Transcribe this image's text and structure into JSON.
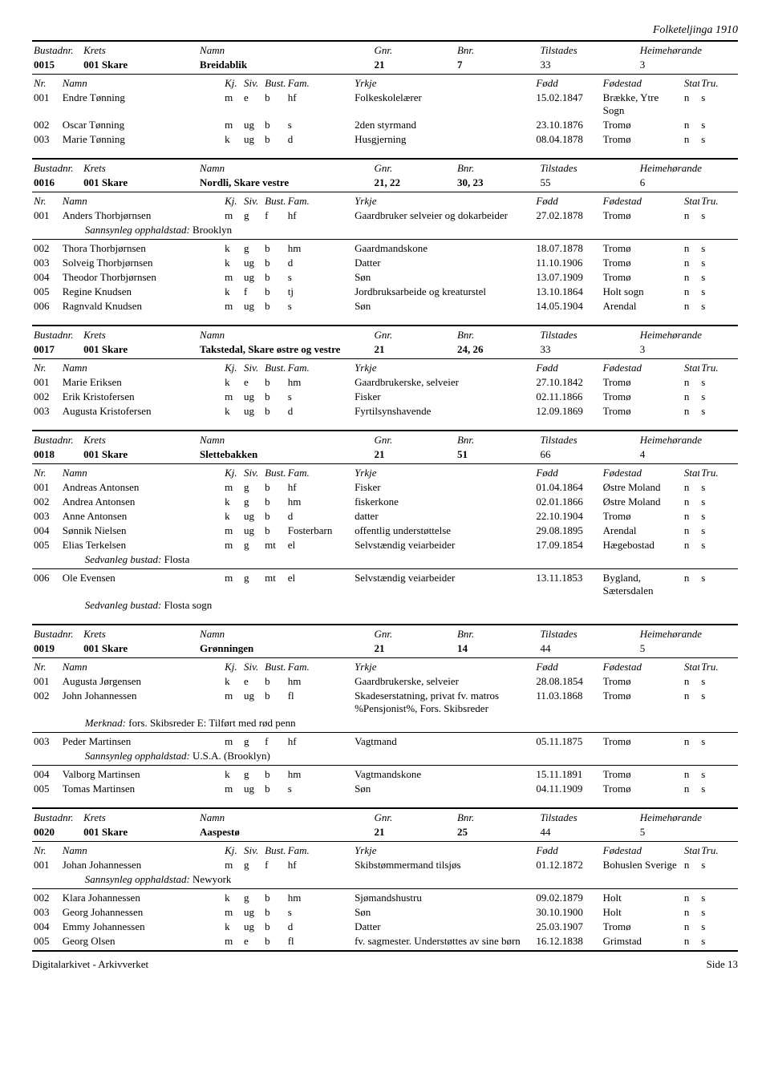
{
  "page_header": "Folketeljinga 1910",
  "footer_left": "Digitalarkivet - Arkivverket",
  "footer_right": "Side 13",
  "dwelling_header_labels": {
    "bustadnr": "Bustadnr.",
    "krets": "Krets",
    "namn": "Namn",
    "gnr": "Gnr.",
    "bnr": "Bnr.",
    "tilstades": "Tilstades",
    "heime": "Heimehørande"
  },
  "person_header_labels": {
    "nr": "Nr.",
    "namn": "Namn",
    "kj": "Kj.",
    "siv": "Siv.",
    "bust": "Bust.",
    "fam": "Fam.",
    "yrkje": "Yrkje",
    "fodd": "Fødd",
    "fodestad": "Fødestad",
    "statsb": "Statsb.",
    "tru": "Tru."
  },
  "note_labels": {
    "sannsynleg": "Sannsynleg opphaldstad:",
    "sedvanleg": "Sedvanleg bustad:",
    "merknad": "Merknad:"
  },
  "sections": [
    {
      "dwelling": {
        "bustadnr": "0015",
        "krets": "001 Skare",
        "namn": "Breidablik",
        "gnr": "21",
        "bnr": "7",
        "tilstades": "33",
        "heime": "3"
      },
      "persons": [
        {
          "nr": "001",
          "namn": "Endre Tønning",
          "kj": "m",
          "siv": "e",
          "bust": "b",
          "fam": "hf",
          "yrkje": "Folkeskolelærer",
          "fodd": "15.02.1847",
          "fodestad": "Brække, Ytre Sogn",
          "statsb": "n",
          "tru": "s"
        },
        {
          "nr": "002",
          "namn": "Oscar Tønning",
          "kj": "m",
          "siv": "ug",
          "bust": "b",
          "fam": "s",
          "yrkje": "2den styrmand",
          "fodd": "23.10.1876",
          "fodestad": "Tromø",
          "statsb": "n",
          "tru": "s"
        },
        {
          "nr": "003",
          "namn": "Marie Tønning",
          "kj": "k",
          "siv": "ug",
          "bust": "b",
          "fam": "d",
          "yrkje": "Husgjerning",
          "fodd": "08.04.1878",
          "fodestad": "Tromø",
          "statsb": "n",
          "tru": "s"
        }
      ]
    },
    {
      "dwelling": {
        "bustadnr": "0016",
        "krets": "001 Skare",
        "namn": "Nordli, Skare vestre",
        "gnr": "21, 22",
        "bnr": "30, 23",
        "tilstades": "55",
        "heime": "6"
      },
      "persons": [
        {
          "nr": "001",
          "namn": "Anders Thorbjørnsen",
          "kj": "m",
          "siv": "g",
          "bust": "f",
          "fam": "hf",
          "yrkje": "Gaardbruker selveier og dokarbeider",
          "fodd": "27.02.1878",
          "fodestad": "Tromø",
          "statsb": "n",
          "tru": "s"
        },
        {
          "note": "sannsynleg",
          "value": "Brooklyn"
        },
        {
          "nr": "002",
          "namn": "Thora Thorbjørnsen",
          "kj": "k",
          "siv": "g",
          "bust": "b",
          "fam": "hm",
          "yrkje": "Gaardmandskone",
          "fodd": "18.07.1878",
          "fodestad": "Tromø",
          "statsb": "n",
          "tru": "s"
        },
        {
          "nr": "003",
          "namn": "Solveig Thorbjørnsen",
          "kj": "k",
          "siv": "ug",
          "bust": "b",
          "fam": "d",
          "yrkje": "Datter",
          "fodd": "11.10.1906",
          "fodestad": "Tromø",
          "statsb": "n",
          "tru": "s"
        },
        {
          "nr": "004",
          "namn": "Theodor Thorbjørnsen",
          "kj": "m",
          "siv": "ug",
          "bust": "b",
          "fam": "s",
          "yrkje": "Søn",
          "fodd": "13.07.1909",
          "fodestad": "Tromø",
          "statsb": "n",
          "tru": "s"
        },
        {
          "nr": "005",
          "namn": "Regine Knudsen",
          "kj": "k",
          "siv": "f",
          "bust": "b",
          "fam": "tj",
          "yrkje": "Jordbruksarbeide og kreaturstel",
          "fodd": "13.10.1864",
          "fodestad": "Holt sogn",
          "statsb": "n",
          "tru": "s"
        },
        {
          "nr": "006",
          "namn": "Ragnvald Knudsen",
          "kj": "m",
          "siv": "ug",
          "bust": "b",
          "fam": "s",
          "yrkje": "Søn",
          "fodd": "14.05.1904",
          "fodestad": "Arendal",
          "statsb": "n",
          "tru": "s"
        }
      ]
    },
    {
      "dwelling": {
        "bustadnr": "0017",
        "krets": "001 Skare",
        "namn": "Takstedal, Skare østre og vestre",
        "gnr": "21",
        "bnr": "24, 26",
        "tilstades": "33",
        "heime": "3"
      },
      "persons": [
        {
          "nr": "001",
          "namn": "Marie Eriksen",
          "kj": "k",
          "siv": "e",
          "bust": "b",
          "fam": "hm",
          "yrkje": "Gaardbrukerske, selveier",
          "fodd": "27.10.1842",
          "fodestad": "Tromø",
          "statsb": "n",
          "tru": "s"
        },
        {
          "nr": "002",
          "namn": "Erik Kristofersen",
          "kj": "m",
          "siv": "ug",
          "bust": "b",
          "fam": "s",
          "yrkje": "Fisker",
          "fodd": "02.11.1866",
          "fodestad": "Tromø",
          "statsb": "n",
          "tru": "s"
        },
        {
          "nr": "003",
          "namn": "Augusta Kristofersen",
          "kj": "k",
          "siv": "ug",
          "bust": "b",
          "fam": "d",
          "yrkje": "Fyrtilsynshavende",
          "fodd": "12.09.1869",
          "fodestad": "Tromø",
          "statsb": "n",
          "tru": "s"
        }
      ]
    },
    {
      "dwelling": {
        "bustadnr": "0018",
        "krets": "001 Skare",
        "namn": "Slettebakken",
        "gnr": "21",
        "bnr": "51",
        "tilstades": "66",
        "heime": "4"
      },
      "persons": [
        {
          "nr": "001",
          "namn": "Andreas Antonsen",
          "kj": "m",
          "siv": "g",
          "bust": "b",
          "fam": "hf",
          "yrkje": "Fisker",
          "fodd": "01.04.1864",
          "fodestad": "Østre Moland",
          "statsb": "n",
          "tru": "s"
        },
        {
          "nr": "002",
          "namn": "Andrea Antonsen",
          "kj": "k",
          "siv": "g",
          "bust": "b",
          "fam": "hm",
          "yrkje": "fiskerkone",
          "fodd": "02.01.1866",
          "fodestad": "Østre Moland",
          "statsb": "n",
          "tru": "s"
        },
        {
          "nr": "003",
          "namn": "Anne Antonsen",
          "kj": "k",
          "siv": "ug",
          "bust": "b",
          "fam": "d",
          "yrkje": "datter",
          "fodd": "22.10.1904",
          "fodestad": "Tromø",
          "statsb": "n",
          "tru": "s"
        },
        {
          "nr": "004",
          "namn": "Sønnik Nielsen",
          "kj": "m",
          "siv": "ug",
          "bust": "b",
          "fam": "Fosterbarn",
          "yrkje": "offentlig understøttelse",
          "fodd": "29.08.1895",
          "fodestad": "Arendal",
          "statsb": "n",
          "tru": "s"
        },
        {
          "nr": "005",
          "namn": "Elias Terkelsen",
          "kj": "m",
          "siv": "g",
          "bust": "mt",
          "fam": "el",
          "yrkje": "Selvstændig veiarbeider",
          "fodd": "17.09.1854",
          "fodestad": "Hægebostad",
          "statsb": "n",
          "tru": "s"
        },
        {
          "note": "sedvanleg",
          "value": "Flosta"
        },
        {
          "nr": "006",
          "namn": "Ole Evensen",
          "kj": "m",
          "siv": "g",
          "bust": "mt",
          "fam": "el",
          "yrkje": "Selvstændig veiarbeider",
          "fodd": "13.11.1853",
          "fodestad": "Bygland, Sætersdalen",
          "statsb": "n",
          "tru": "s"
        },
        {
          "note": "sedvanleg",
          "value": "Flosta sogn"
        }
      ]
    },
    {
      "dwelling": {
        "bustadnr": "0019",
        "krets": "001 Skare",
        "namn": "Grønningen",
        "gnr": "21",
        "bnr": "14",
        "tilstades": "44",
        "heime": "5"
      },
      "persons": [
        {
          "nr": "001",
          "namn": "Augusta Jørgensen",
          "kj": "k",
          "siv": "e",
          "bust": "b",
          "fam": "hm",
          "yrkje": "Gaardbrukerske, selveier",
          "fodd": "28.08.1854",
          "fodestad": "Tromø",
          "statsb": "n",
          "tru": "s"
        },
        {
          "nr": "002",
          "namn": "John Johannessen",
          "kj": "m",
          "siv": "ug",
          "bust": "b",
          "fam": "fl",
          "yrkje": "Skadeserstatning, privat fv. matros %Pensjonist%, Fors. Skibsreder",
          "fodd": "11.03.1868",
          "fodestad": "Tromø",
          "statsb": "n",
          "tru": "s"
        },
        {
          "note": "merknad",
          "value": "fors. Skibsreder E: Tilført med rød penn"
        },
        {
          "nr": "003",
          "namn": "Peder Martinsen",
          "kj": "m",
          "siv": "g",
          "bust": "f",
          "fam": "hf",
          "yrkje": "Vagtmand",
          "fodd": "05.11.1875",
          "fodestad": "Tromø",
          "statsb": "n",
          "tru": "s"
        },
        {
          "note": "sannsynleg",
          "value": "U.S.A. (Brooklyn)"
        },
        {
          "nr": "004",
          "namn": "Valborg Martinsen",
          "kj": "k",
          "siv": "g",
          "bust": "b",
          "fam": "hm",
          "yrkje": "Vagtmandskone",
          "fodd": "15.11.1891",
          "fodestad": "Tromø",
          "statsb": "n",
          "tru": "s"
        },
        {
          "nr": "005",
          "namn": "Tomas Martinsen",
          "kj": "m",
          "siv": "ug",
          "bust": "b",
          "fam": "s",
          "yrkje": "Søn",
          "fodd": "04.11.1909",
          "fodestad": "Tromø",
          "statsb": "n",
          "tru": "s"
        }
      ]
    },
    {
      "dwelling": {
        "bustadnr": "0020",
        "krets": "001 Skare",
        "namn": "Aaspestø",
        "gnr": "21",
        "bnr": "25",
        "tilstades": "44",
        "heime": "5"
      },
      "persons": [
        {
          "nr": "001",
          "namn": "Johan Johannessen",
          "kj": "m",
          "siv": "g",
          "bust": "f",
          "fam": "hf",
          "yrkje": "Skibstømmermand tilsjøs",
          "fodd": "01.12.1872",
          "fodestad": "Bohuslen Sverige",
          "statsb": "n",
          "tru": "s"
        },
        {
          "note": "sannsynleg",
          "value": "Newyork"
        },
        {
          "nr": "002",
          "namn": "Klara Johannessen",
          "kj": "k",
          "siv": "g",
          "bust": "b",
          "fam": "hm",
          "yrkje": "Sjømandshustru",
          "fodd": "09.02.1879",
          "fodestad": "Holt",
          "statsb": "n",
          "tru": "s"
        },
        {
          "nr": "003",
          "namn": "Georg Johannessen",
          "kj": "m",
          "siv": "ug",
          "bust": "b",
          "fam": "s",
          "yrkje": "Søn",
          "fodd": "30.10.1900",
          "fodestad": "Holt",
          "statsb": "n",
          "tru": "s"
        },
        {
          "nr": "004",
          "namn": "Emmy Johannessen",
          "kj": "k",
          "siv": "ug",
          "bust": "b",
          "fam": "d",
          "yrkje": "Datter",
          "fodd": "25.03.1907",
          "fodestad": "Tromø",
          "statsb": "n",
          "tru": "s"
        },
        {
          "nr": "005",
          "namn": "Georg Olsen",
          "kj": "m",
          "siv": "e",
          "bust": "b",
          "fam": "fl",
          "yrkje": "fv. sagmester. Understøttes av sine børn",
          "fodd": "16.12.1838",
          "fodestad": "Grimstad",
          "statsb": "n",
          "tru": "s"
        }
      ]
    }
  ]
}
